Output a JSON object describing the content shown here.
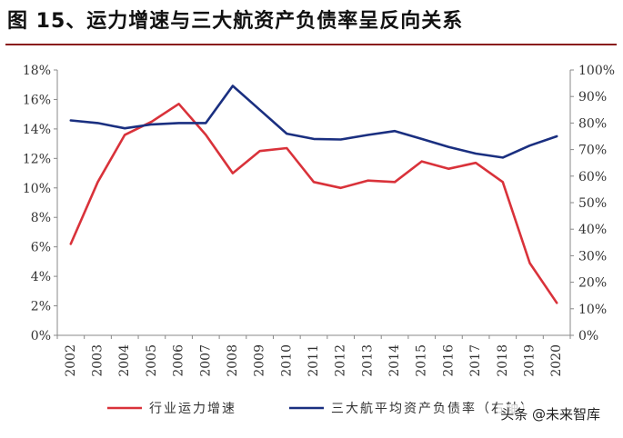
{
  "figure": {
    "title": "图 15、运力增速与三大航资产负债率呈反向关系",
    "watermark": "头条 @未来智库"
  },
  "chart_data": {
    "type": "line",
    "x": [
      "2002",
      "2003",
      "2004",
      "2005",
      "2006",
      "2007",
      "2008",
      "2009",
      "2010",
      "2011",
      "2012",
      "2013",
      "2014",
      "2015",
      "2016",
      "2017",
      "2018",
      "2019",
      "2020"
    ],
    "series": [
      {
        "name": "行业运力增速",
        "axis": "left",
        "color": "#d9323a",
        "values": [
          6.2,
          10.4,
          13.6,
          14.5,
          15.7,
          13.6,
          11.0,
          12.5,
          12.7,
          10.4,
          10.0,
          10.5,
          10.4,
          11.8,
          11.3,
          11.7,
          10.4,
          4.9,
          2.2
        ]
      },
      {
        "name": "三大航平均资产负债率（右轴）",
        "axis": "right",
        "color": "#1a2f80",
        "values": [
          81,
          80,
          78,
          79.5,
          80,
          80,
          94,
          85,
          76,
          74,
          73.8,
          75.5,
          77,
          74,
          71,
          68.5,
          67,
          71.5,
          75
        ]
      }
    ],
    "yLeft": {
      "min": 0,
      "max": 18,
      "step": 2,
      "unit": "%"
    },
    "yRight": {
      "min": 0,
      "max": 100,
      "step": 10,
      "unit": "%"
    },
    "grid": false,
    "legend": "bottom"
  }
}
